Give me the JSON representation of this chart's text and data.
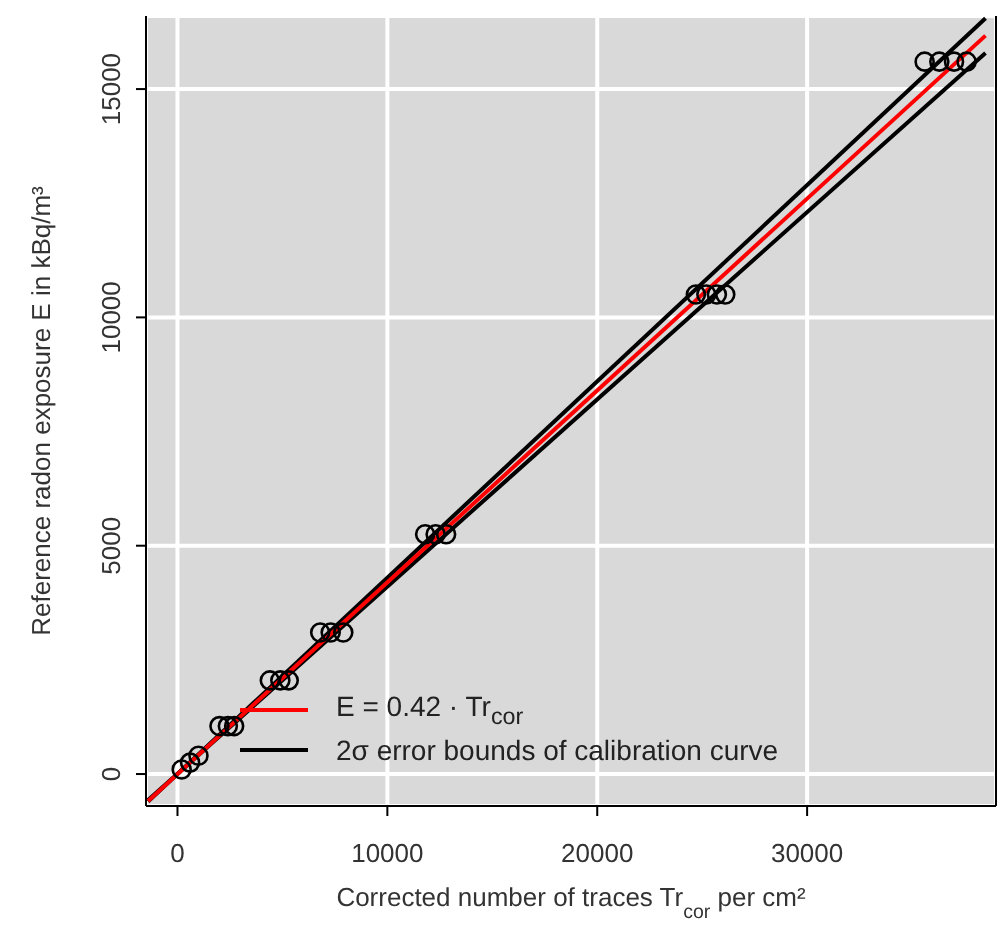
{
  "chart_data": {
    "type": "scatter",
    "xlabel": "Corrected number of traces Tr$_{cor}$ per cm²",
    "ylabel": "Reference radon exposure E in kBq/m³",
    "xlim": [
      -1500,
      39000
    ],
    "ylim": [
      -700,
      16600
    ],
    "xticks": [
      0,
      10000,
      20000,
      30000
    ],
    "yticks": [
      0,
      5000,
      10000,
      15000
    ],
    "grid": true,
    "legend": "bottom left",
    "series": [
      {
        "color": "#000000",
        "marker": "circle",
        "x": [
          200,
          600,
          1000,
          2000,
          2400,
          2700,
          4400,
          4900,
          5300,
          6800,
          7300,
          7900,
          11800,
          12300,
          12800,
          24700,
          25200,
          25700,
          26100,
          35600,
          36300,
          37000,
          37600
        ],
        "values": [
          100,
          250,
          400,
          1050,
          1050,
          1050,
          2050,
          2050,
          2050,
          3100,
          3100,
          3100,
          5250,
          5250,
          5250,
          10500,
          10500,
          10500,
          10500,
          15600,
          15600,
          15600,
          15600
        ]
      },
      {
        "type": "line",
        "name": "E = 0.42 · Tr$_{cor}$",
        "color": "#ff0000",
        "marker": "none",
        "x": [
          -1400,
          38500
        ],
        "values": [
          -590,
          16170
        ]
      },
      {
        "type": "line",
        "name": "2σ error bounds of calibration curve",
        "color": "#000000",
        "marker": "none",
        "x": [
          -1400,
          38500
        ],
        "values": [
          -600,
          16550
        ]
      },
      {
        "type": "line",
        "color": "#000000",
        "marker": "none",
        "x": [
          -1400,
          38500
        ],
        "values": [
          -570,
          15790
        ]
      }
    ]
  }
}
